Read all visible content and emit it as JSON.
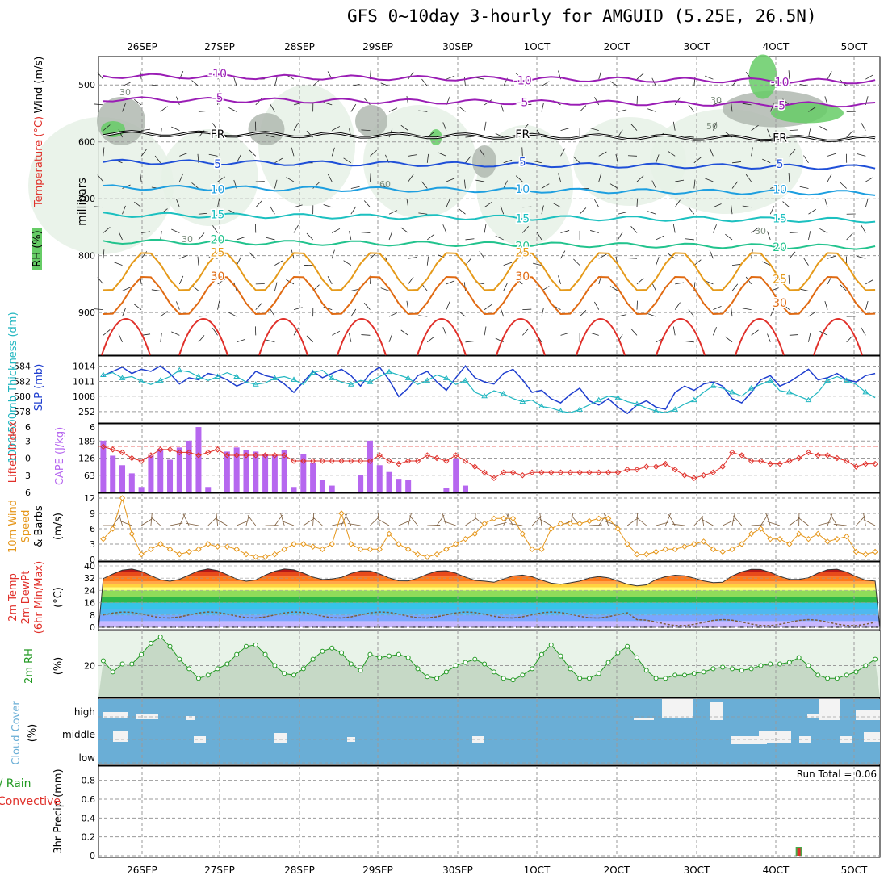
{
  "title": "GFS 0~10day 3-hourly for AMGUID (5.25E, 26.5N)",
  "colors": {
    "purple": "#9a1db5",
    "blue": "#1f4fd8",
    "lightblue": "#1e9fe0",
    "teal": "#1cc0c0",
    "green": "#22c38d",
    "orange": "#e59a1a",
    "darkorange": "#e06a12",
    "red": "#e0302a",
    "rhGreen": "#66cc66",
    "rhGray": "#b0b8b0",
    "rhLight": "#e6f1e6",
    "cloud": "#6aaed6",
    "cape": "#b667ef",
    "li": "#e0302a",
    "slp": "#1f3fcf",
    "thick": "#20b6c0",
    "wind": "#e5961a",
    "barb": "#7a5a3a",
    "rh2m": "#229922"
  },
  "chart_data": [
    {
      "type": "line",
      "name": "upper_air",
      "title": "Temperature / Wind / RH",
      "ylabel": "millibars",
      "ylim": [
        450,
        975
      ],
      "yticks": [
        "500",
        "600",
        "700",
        "800",
        "900"
      ],
      "x_dates": [
        "26SEP",
        "27SEP",
        "28SEP",
        "29SEP",
        "30SEP",
        "1OCT",
        "2OCT",
        "3OCT",
        "4OCT",
        "5OCT"
      ],
      "labels": {
        "axis": "millibars",
        "wind": "Wind (m/s)",
        "temp": "Temperature (°C)",
        "rh": "RH (%)",
        "fr": "FR"
      },
      "isotherms": [
        {
          "label": "-10",
          "color": "#9a1db5",
          "base": 484
        },
        {
          "label": "-5",
          "color": "#9a1db5",
          "base": 525
        },
        {
          "label": "FR",
          "color": "#000000",
          "base": 585
        },
        {
          "label": "5",
          "color": "#1f4fd8",
          "base": 635
        },
        {
          "label": "10",
          "color": "#1e9fe0",
          "base": 680
        },
        {
          "label": "15",
          "color": "#1cc0c0",
          "base": 728
        },
        {
          "label": "20",
          "color": "#22c38d",
          "base": 775
        },
        {
          "label": "25",
          "color": "#e59a1a",
          "base": 828
        },
        {
          "label": "30",
          "color": "#e06a12",
          "base": 870
        }
      ],
      "rh_labels": [
        "30",
        "30",
        "50",
        "60",
        "30",
        "30"
      ]
    },
    {
      "type": "line",
      "name": "slp_thickness",
      "ylabel_left": "1000-500mb Thickness (dm)",
      "ylabel_right": "SLP (mb)",
      "y_left_ticks": [
        "584",
        "582",
        "580",
        "578"
      ],
      "y_right_ticks": [
        "1014",
        "1011",
        "1008",
        "252"
      ],
      "series": [
        {
          "name": "SLP",
          "values": [
            1012.5,
            1013.5,
            1014.5,
            1013.0,
            1014.0,
            1013.5,
            1014.8,
            1013.0,
            1010.5,
            1012.0,
            1011.5,
            1013.0,
            1012.5,
            1011.5,
            1010.0,
            1011.0,
            1013.5,
            1012.5,
            1012.0,
            1010.5,
            1008.5,
            1011.0,
            1013.5,
            1012.0,
            1013.0,
            1014.0,
            1012.5,
            1010.0,
            1013.0,
            1014.5,
            1011.5,
            1007.5,
            1009.5,
            1012.5,
            1013.5,
            1011.0,
            1009.0,
            1012.0,
            1014.8,
            1012.0,
            1011.0,
            1010.5,
            1013.0,
            1014.0,
            1011.5,
            1008.5,
            1009.0,
            1007.0,
            1006.0,
            1008.0,
            1009.5,
            1006.5,
            1005.5,
            1007.0,
            1005.0,
            1003.5,
            1005.5,
            1006.5,
            1005.0,
            1004.5,
            1008.5,
            1010.0,
            1009.0,
            1010.5,
            1011.0,
            1010.0,
            1007.0,
            1006.0,
            1008.5,
            1011.5,
            1012.5,
            1010.0,
            1011.0,
            1012.5,
            1014.0,
            1011.5,
            1012.0,
            1013.0,
            1011.5,
            1011.0,
            1012.5,
            1013.0
          ]
        },
        {
          "name": "Thickness",
          "values": [
            583.2,
            583.5,
            582.8,
            583.0,
            582.4,
            582.0,
            582.5,
            583.0,
            583.8,
            583.6,
            583.0,
            582.5,
            583.0,
            583.5,
            583.0,
            582.3,
            582.0,
            582.2,
            582.8,
            583.0,
            582.6,
            582.0,
            583.5,
            583.8,
            582.8,
            582.3,
            582.0,
            582.5,
            582.3,
            583.0,
            583.6,
            583.2,
            582.8,
            582.0,
            582.5,
            583.2,
            582.8,
            582.0,
            582.5,
            581.0,
            580.5,
            581.2,
            580.8,
            580.2,
            579.8,
            580.0,
            579.2,
            579.0,
            578.6,
            578.4,
            578.8,
            579.4,
            580.0,
            580.5,
            580.3,
            579.8,
            579.5,
            579.0,
            578.6,
            578.4,
            578.8,
            579.5,
            580.0,
            581.0,
            581.8,
            581.5,
            581.0,
            580.5,
            581.5,
            582.0,
            582.5,
            581.2,
            581.0,
            580.5,
            580.0,
            581.0,
            582.5,
            583.0,
            582.5,
            582.0,
            581.0,
            580.3
          ]
        }
      ]
    },
    {
      "type": "bar",
      "name": "cape_li",
      "ylabel_left": "Lifted Index",
      "ylabel_right": "CAPE (J/kg)",
      "y_left_ticks": [
        "6",
        "-3",
        "0",
        "3",
        "6"
      ],
      "y_right_ticks": [
        "189",
        "126",
        "63"
      ],
      "cape_values": [
        190,
        135,
        100,
        70,
        20,
        135,
        160,
        120,
        165,
        190,
        240,
        20,
        0,
        150,
        165,
        155,
        150,
        140,
        135,
        155,
        20,
        140,
        110,
        45,
        25,
        0,
        0,
        65,
        190,
        100,
        75,
        50,
        45,
        0,
        0,
        0,
        15,
        125,
        25,
        0,
        0,
        0,
        0,
        0,
        0,
        0,
        0,
        0,
        0,
        0,
        0,
        0,
        0,
        0,
        0,
        0,
        0,
        0,
        0,
        0,
        0,
        0,
        0,
        0,
        0,
        0,
        0,
        0,
        0,
        0,
        0,
        0,
        0,
        0,
        0,
        0,
        0,
        0,
        0,
        0,
        0,
        0
      ],
      "li_values": [
        -2.0,
        -1.5,
        -1.0,
        0.0,
        0.5,
        -0.5,
        -1.5,
        -1.5,
        -1.0,
        -1.0,
        -0.5,
        -1.0,
        -1.5,
        -0.5,
        -0.5,
        -0.5,
        -0.5,
        -0.5,
        -0.5,
        -0.5,
        0.5,
        0.5,
        0.5,
        0.5,
        0.5,
        0.5,
        0.5,
        0.5,
        0.5,
        -0.5,
        0.5,
        1.0,
        0.5,
        0.5,
        -0.5,
        0.0,
        0.5,
        -0.5,
        0.5,
        1.5,
        2.5,
        3.5,
        2.5,
        2.5,
        3.0,
        2.5,
        2.5,
        2.5,
        2.5,
        2.5,
        2.5,
        2.5,
        2.5,
        2.5,
        2.5,
        2.0,
        2.0,
        1.5,
        1.5,
        1.0,
        2.0,
        3.0,
        3.5,
        3.0,
        2.5,
        1.5,
        -1.0,
        -0.5,
        0.5,
        0.5,
        1.0,
        1.0,
        0.5,
        0.0,
        -1.0,
        -0.5,
        -0.5,
        0.0,
        0.5,
        1.5,
        1.0,
        1.0
      ]
    },
    {
      "type": "line",
      "name": "wind10m",
      "ylabel": "10m Wind Speed & Barbs (m/s)",
      "ylim": [
        0,
        12
      ],
      "yticks": [
        "0",
        "3",
        "6",
        "9",
        "12"
      ],
      "values": [
        4,
        6,
        12,
        5,
        1,
        2,
        3,
        2,
        1,
        1.5,
        2,
        3,
        2.5,
        2.5,
        2,
        1,
        0.5,
        0.5,
        1,
        2,
        3,
        3,
        2.5,
        2,
        3,
        9,
        3,
        2,
        2,
        2,
        5,
        3,
        2,
        1,
        0.5,
        1,
        2,
        3,
        4,
        5,
        7,
        8,
        8,
        8,
        5,
        2,
        2,
        6,
        7,
        7,
        7,
        7.5,
        8,
        8,
        6,
        3,
        1,
        1,
        1.5,
        2,
        2,
        2.5,
        3,
        3.5,
        2,
        1.5,
        2,
        3,
        5,
        6,
        4,
        4,
        3,
        5,
        4,
        5,
        3.5,
        4,
        4.5,
        1.5,
        1,
        1.5
      ]
    },
    {
      "type": "area",
      "name": "temp2m",
      "ylabel": "2m Temp / 2m DewPt (6hr Min/Max) (°C)",
      "ylim": [
        0,
        40
      ],
      "yticks": [
        "0",
        "8",
        "16",
        "24",
        "32",
        "40"
      ],
      "maxima": [
        38,
        38,
        38,
        37,
        37,
        34,
        33,
        34,
        38,
        38
      ],
      "minima": [
        30,
        30,
        31,
        30,
        30,
        28,
        27,
        29,
        31,
        30
      ],
      "dewpoint_base": 8
    },
    {
      "type": "area",
      "name": "rh2m",
      "ylabel": "2m RH (%)",
      "yticks": [
        "20"
      ],
      "values": [
        23,
        16,
        21,
        21,
        27,
        34,
        38,
        32,
        24,
        18,
        12,
        14,
        18,
        21,
        27,
        32,
        33,
        27,
        20,
        15,
        14,
        18,
        24,
        29,
        31,
        28,
        21,
        17,
        27,
        25,
        26,
        27,
        25,
        18,
        13,
        12,
        16,
        20,
        22,
        24,
        21,
        16,
        12,
        11,
        14,
        18,
        27,
        33,
        26,
        18,
        12,
        12,
        15,
        22,
        28,
        32,
        25,
        17,
        12,
        12,
        14,
        14,
        15,
        16,
        18,
        19,
        18,
        17,
        18,
        20,
        21,
        21,
        22,
        25,
        20,
        14,
        12,
        12,
        14,
        16,
        20,
        24
      ]
    },
    {
      "type": "bar",
      "name": "cloud",
      "ylabel": "Cloud Cover (%)",
      "levels": [
        "high",
        "middle",
        "low"
      ]
    },
    {
      "type": "bar",
      "name": "precip",
      "ylabel_left": "Total / Rain",
      "ylabel_left2": "Convective",
      "ylabel": "3hr Precip (mm)",
      "ylim": [
        0,
        0.9
      ],
      "yticks": [
        "0",
        "0.2",
        "0.4",
        "0.6",
        "0.8"
      ],
      "run_total_label": "Run Total = 0.06",
      "bars": [
        {
          "step": 73,
          "value": 0.06
        }
      ]
    }
  ]
}
